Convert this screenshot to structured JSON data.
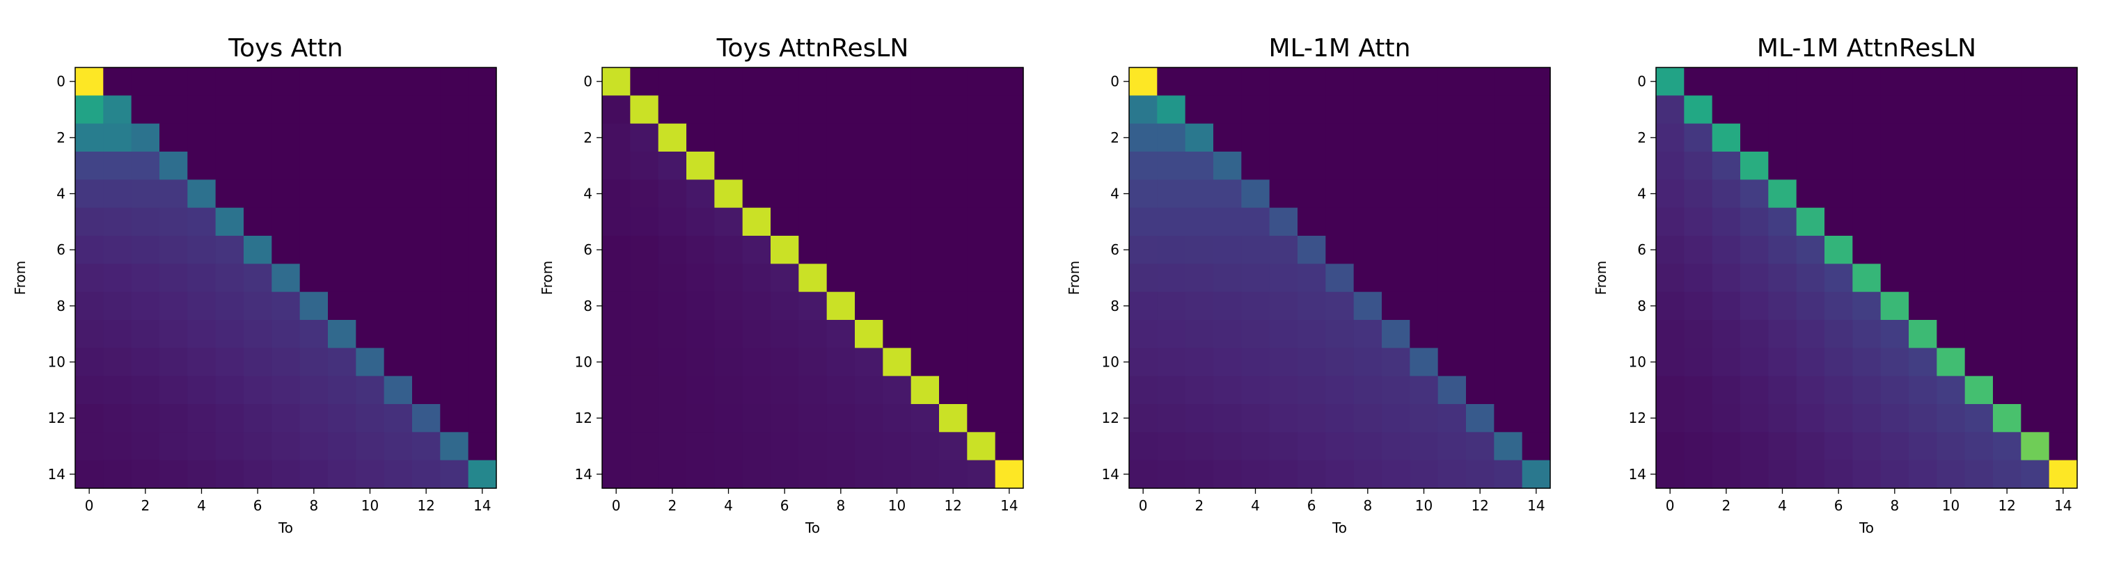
{
  "chart_data": [
    {
      "type": "heatmap",
      "title": "Toys Attn",
      "xlabel": "To",
      "ylabel": "From",
      "xticks": [
        0,
        2,
        4,
        6,
        8,
        10,
        12,
        14
      ],
      "yticks": [
        0,
        2,
        4,
        6,
        8,
        10,
        12,
        14
      ],
      "size": 15,
      "colormap": "viridis",
      "diag": [
        1.0,
        0.45,
        0.38,
        0.36,
        0.37,
        0.38,
        0.38,
        0.35,
        0.33,
        0.34,
        0.32,
        0.3,
        0.28,
        0.34,
        0.46
      ],
      "first_col": [
        1.0,
        0.58,
        0.42,
        0.2,
        0.16,
        0.13,
        0.11,
        0.09,
        0.08,
        0.07,
        0.06,
        0.05,
        0.04,
        0.04,
        0.03
      ],
      "off_peak": 0.17
    },
    {
      "type": "heatmap",
      "title": "Toys AttnResLN",
      "xlabel": "To",
      "ylabel": "From",
      "xticks": [
        0,
        2,
        4,
        6,
        8,
        10,
        12,
        14
      ],
      "yticks": [
        0,
        2,
        4,
        6,
        8,
        10,
        12,
        14
      ],
      "size": 15,
      "colormap": "viridis",
      "diag": [
        0.92,
        0.92,
        0.92,
        0.92,
        0.92,
        0.92,
        0.92,
        0.92,
        0.92,
        0.92,
        0.92,
        0.92,
        0.92,
        0.92,
        1.0
      ],
      "first_col": [
        0.92,
        0.03,
        0.04,
        0.04,
        0.03,
        0.03,
        0.02,
        0.02,
        0.02,
        0.02,
        0.02,
        0.02,
        0.02,
        0.02,
        0.02
      ],
      "off_peak": 0.08
    },
    {
      "type": "heatmap",
      "title": "ML-1M Attn",
      "xlabel": "To",
      "ylabel": "From",
      "xticks": [
        0,
        2,
        4,
        6,
        8,
        10,
        12,
        14
      ],
      "yticks": [
        0,
        2,
        4,
        6,
        8,
        10,
        12,
        14
      ],
      "size": 15,
      "colormap": "viridis",
      "diag": [
        1.0,
        0.52,
        0.4,
        0.32,
        0.28,
        0.25,
        0.25,
        0.24,
        0.26,
        0.27,
        0.28,
        0.27,
        0.28,
        0.33,
        0.4
      ],
      "first_col": [
        1.0,
        0.4,
        0.3,
        0.22,
        0.19,
        0.17,
        0.15,
        0.13,
        0.11,
        0.1,
        0.09,
        0.08,
        0.07,
        0.06,
        0.05
      ],
      "off_peak": 0.17
    },
    {
      "type": "heatmap",
      "title": "ML-1M AttnResLN",
      "xlabel": "To",
      "ylabel": "From",
      "xticks": [
        0,
        2,
        4,
        6,
        8,
        10,
        12,
        14
      ],
      "yticks": [
        0,
        2,
        4,
        6,
        8,
        10,
        12,
        14
      ],
      "size": 15,
      "colormap": "viridis",
      "diag": [
        0.58,
        0.6,
        0.61,
        0.62,
        0.63,
        0.64,
        0.65,
        0.66,
        0.67,
        0.68,
        0.69,
        0.7,
        0.71,
        0.78,
        1.0
      ],
      "first_col": [
        0.58,
        0.13,
        0.12,
        0.11,
        0.1,
        0.09,
        0.08,
        0.07,
        0.06,
        0.05,
        0.05,
        0.04,
        0.04,
        0.03,
        0.03
      ],
      "off_peak": 0.22
    }
  ]
}
